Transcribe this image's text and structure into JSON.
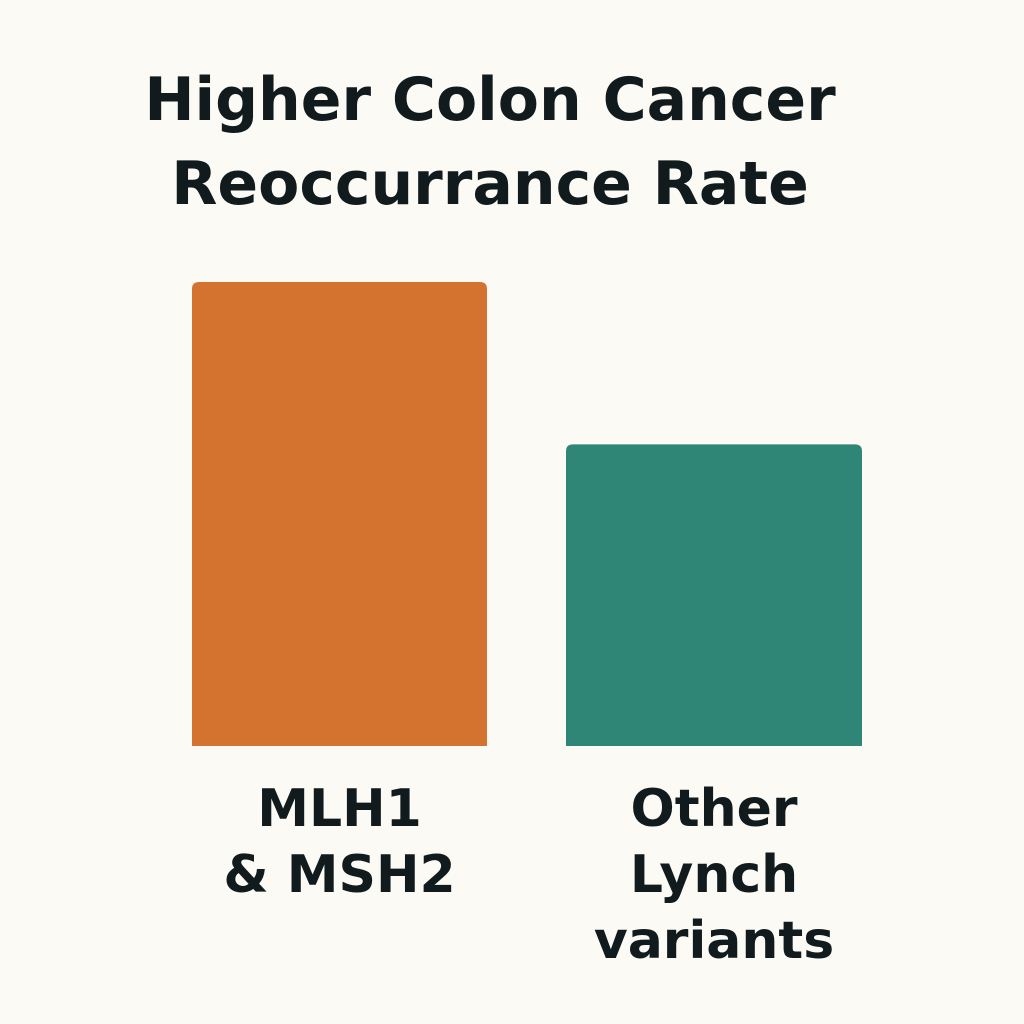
{
  "chart_data": {
    "type": "bar",
    "title_lines": [
      "Higher Colon Cancer",
      "Reoccurrance Rate"
    ],
    "title": "Higher Colon Cancer Reoccurrance Rate",
    "categories": [
      "MLH1 & MSH2",
      "Other Lynch variants"
    ],
    "category_lines": [
      [
        "MLH1",
        "& MSH2"
      ],
      [
        "Other",
        "Lynch",
        "variants"
      ]
    ],
    "values": [
      100,
      65
    ],
    "colors": [
      "#d4732f",
      "#2f8576"
    ],
    "xlabel": "",
    "ylabel": "",
    "ylim": [
      0,
      100
    ],
    "grid": false,
    "legend": "none"
  }
}
